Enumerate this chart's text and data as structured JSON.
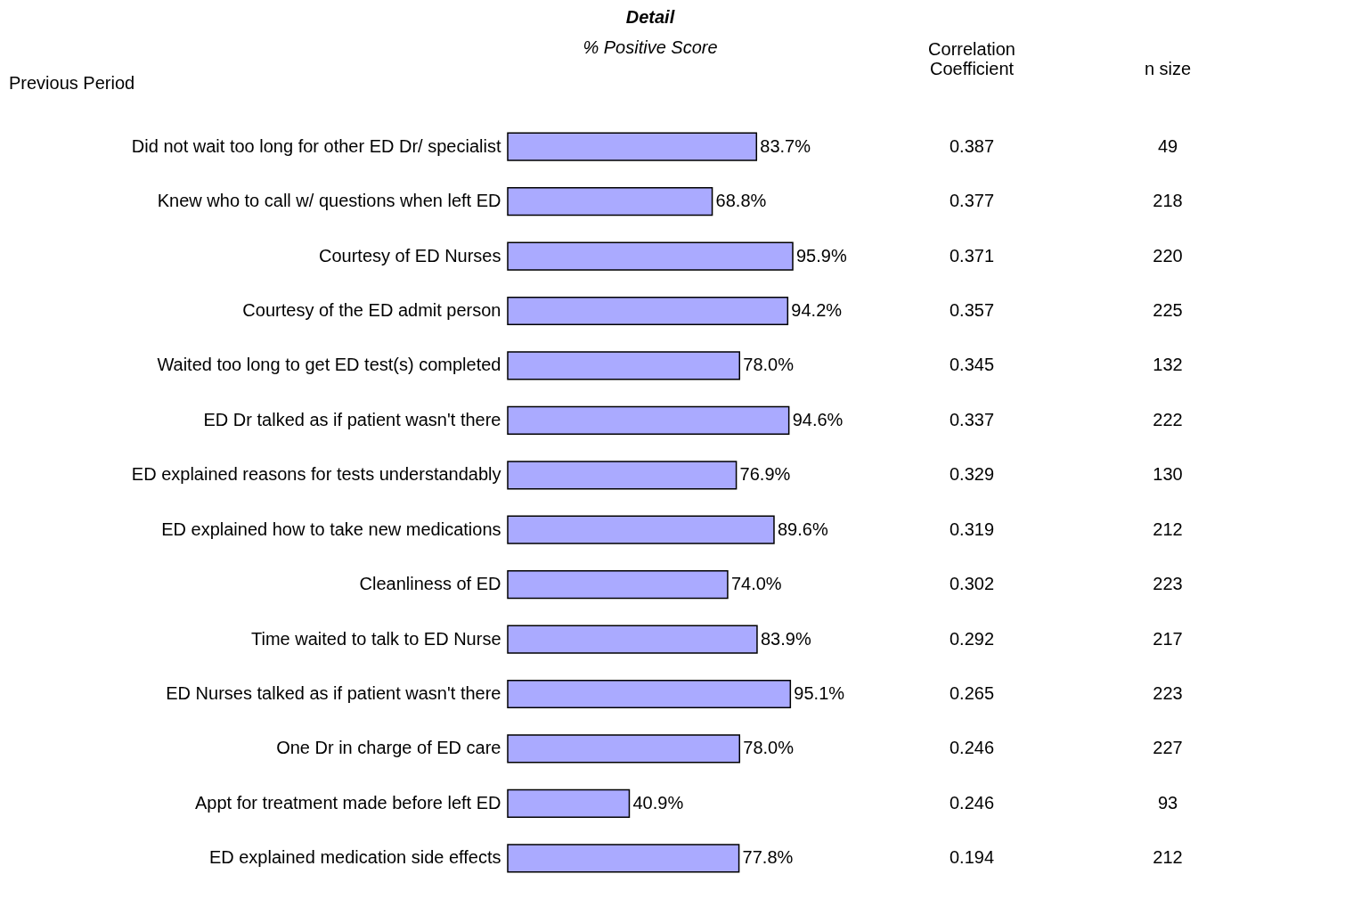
{
  "chart_data": [
    {
      "type": "bar",
      "orientation": "horizontal",
      "title": "Detail",
      "subtitle": "% Positive Score",
      "annotations": [
        "Previous Period"
      ],
      "categories": [
        "Did not wait too long for other ED Dr/ specialist",
        "Knew who to call w/ questions when left ED",
        "Courtesy of ED Nurses",
        "Courtesy of the ED admit person",
        "Waited too long to get ED test(s) completed",
        "ED Dr talked as if patient wasn't there",
        "ED explained reasons for tests understandably",
        "ED explained how to take new medications",
        "Cleanliness of ED",
        "Time waited to talk to ED Nurse",
        "ED Nurses talked as if patient wasn't there",
        "One Dr in charge of ED care",
        "Appt for treatment made before left ED",
        "ED explained medication side effects"
      ],
      "series": [
        {
          "color": "#aaaaff",
          "values": [
            83.7,
            68.8,
            95.9,
            94.2,
            78.0,
            94.6,
            76.9,
            89.6,
            74.0,
            83.9,
            95.1,
            78.0,
            40.9,
            77.8
          ],
          "value_labels": [
            "83.7%",
            "68.8%",
            "95.9%",
            "94.2%",
            "78.0%",
            "94.6%",
            "76.9%",
            "89.6%",
            "74.0%",
            "83.9%",
            "95.1%",
            "78.0%",
            "40.9%",
            "77.8%"
          ]
        }
      ],
      "grid": false
    },
    {
      "type": "other",
      "title": "Correlation Coefficient",
      "data_labels": true,
      "values": [
        0.387,
        0.377,
        0.371,
        0.357,
        0.345,
        0.337,
        0.329,
        0.319,
        0.302,
        0.292,
        0.265,
        0.246,
        0.246,
        0.194
      ]
    },
    {
      "type": "other",
      "title": "n size",
      "data_labels": true,
      "values": [
        49,
        218,
        220,
        225,
        132,
        222,
        130,
        212,
        223,
        217,
        223,
        227,
        93,
        212
      ]
    }
  ]
}
